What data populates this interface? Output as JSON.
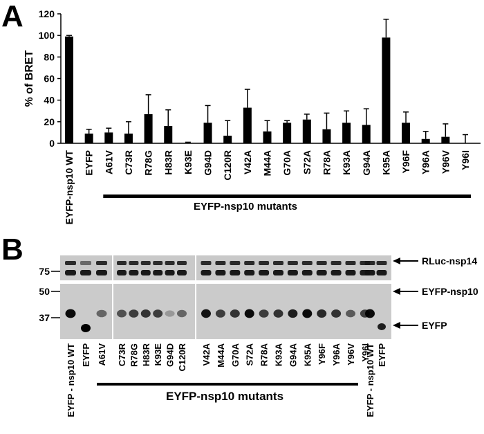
{
  "panel_a": {
    "letter": "A",
    "mutants_label": "EYFP-nsp10 mutants"
  },
  "panel_b": {
    "letter": "B",
    "mutants_label": "EYFP-nsp10 mutants",
    "mw_markers": [
      "75",
      "50",
      "37"
    ],
    "band_labels": [
      "RLuc-nsp14",
      "EYFP-nsp10",
      "EYFP"
    ],
    "lanes": [
      "EYFP - nsp10 WT",
      "EYFP",
      "A61V",
      "C73R",
      "R78G",
      "H83R",
      "K93E",
      "G94D",
      "C120R",
      "V42A",
      "M44A",
      "G70A",
      "S72A",
      "R78A",
      "K93A",
      "G94A",
      "K95A",
      "Y96F",
      "Y96A",
      "Y96V",
      "Y96I",
      "EYFP - nsp10 WT",
      "EYFP"
    ]
  },
  "chart_data": {
    "type": "bar",
    "title": "",
    "xlabel": "",
    "ylabel": "% of BRET",
    "ylim": [
      0,
      120
    ],
    "yticks": [
      "0",
      "20",
      "40",
      "60",
      "80",
      "100",
      "120"
    ],
    "categories": [
      "EYFP-nsp10 WT",
      "EYFP",
      "A61V",
      "C73R",
      "R78G",
      "H83R",
      "K93E",
      "G94D",
      "C120R",
      "V42A",
      "M44A",
      "G70A",
      "S72A",
      "R78A",
      "K93A",
      "G94A",
      "K95A",
      "Y96F",
      "Y96A",
      "Y96V",
      "Y96I"
    ],
    "values": [
      99,
      9,
      10,
      9,
      27,
      16,
      0,
      19,
      7,
      33,
      11,
      19,
      22,
      13,
      19,
      17,
      98,
      19,
      4,
      6,
      0
    ],
    "errors": [
      1,
      4,
      4,
      11,
      18,
      15,
      1,
      16,
      14,
      17,
      10,
      2,
      5,
      15,
      11,
      15,
      17,
      10,
      7,
      12,
      8
    ],
    "grid": false,
    "bar_color": "#000000"
  }
}
